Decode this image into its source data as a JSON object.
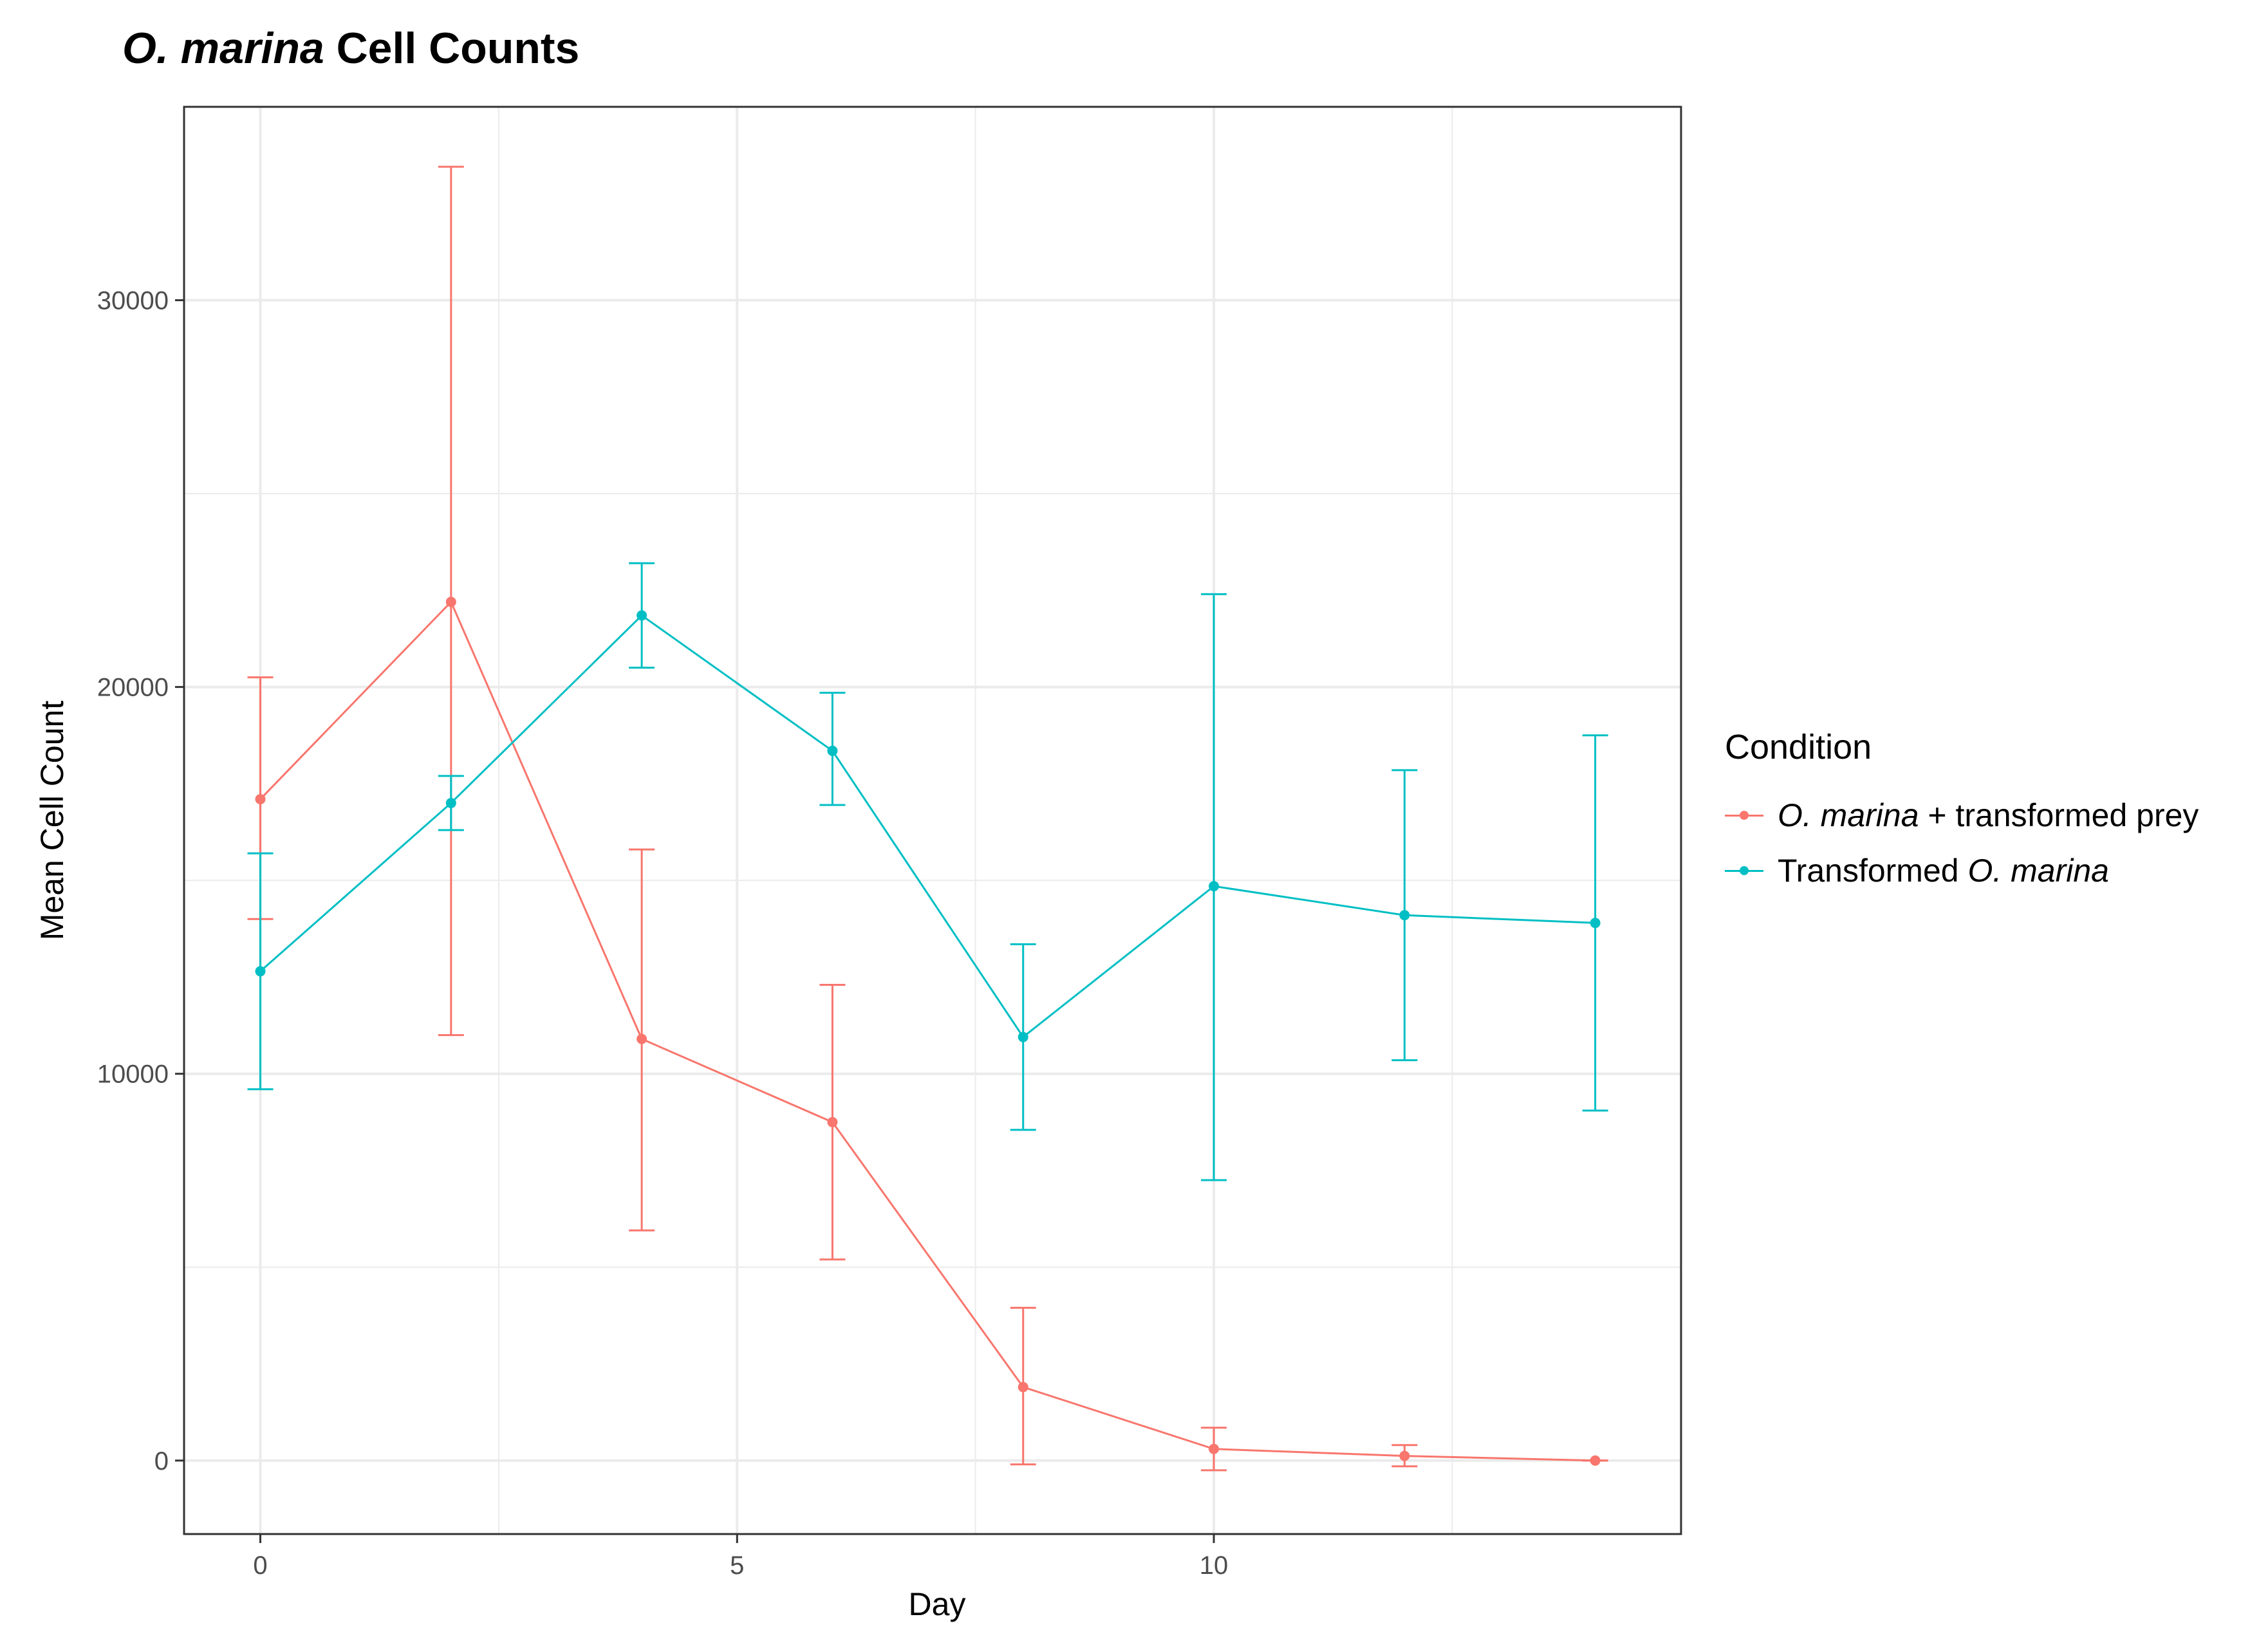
{
  "title": {
    "italic": "O. marina",
    "rest": " Cell Counts"
  },
  "colors": {
    "series_a": "#F8766D",
    "series_b": "#00BFC4",
    "grid": "#EBEBEB",
    "axis": "#333333"
  },
  "chart_data": {
    "type": "line",
    "title": "O. marina Cell Counts",
    "xlabel": "Day",
    "ylabel": "Mean Cell Count",
    "xlim": [
      -0.8,
      14.9
    ],
    "ylim": [
      -1900,
      35000
    ],
    "xticks": [
      0,
      5,
      10
    ],
    "yticks": [
      0,
      10000,
      20000,
      30000
    ],
    "x_minor": [
      2.5,
      7.5,
      12.5
    ],
    "y_minor": [
      5000,
      15000,
      25000
    ],
    "grid": true,
    "legend_title": "Condition",
    "legend_position": "right",
    "series": [
      {
        "name": "O. marina + transformed prey",
        "name_italic": "O. marina",
        "name_rest": " + transformed prey",
        "color": "#F8766D",
        "x": [
          0,
          2,
          4,
          6,
          8,
          10,
          12,
          14
        ],
        "y": [
          17100,
          22200,
          10900,
          8750,
          1900,
          300,
          120,
          0
        ],
        "ymin": [
          14000,
          11000,
          5950,
          5200,
          -100,
          -250,
          -150,
          0
        ],
        "ymax": [
          20250,
          33450,
          15800,
          12300,
          3950,
          850,
          400,
          0
        ]
      },
      {
        "name": "Transformed O. marina",
        "name_plain": "Transformed ",
        "name_italic": "O. marina",
        "color": "#00BFC4",
        "x": [
          0,
          2,
          4,
          6,
          8,
          10,
          12,
          14
        ],
        "y": [
          12650,
          17000,
          21850,
          18350,
          10950,
          14850,
          14100,
          13900
        ],
        "ymin": [
          9600,
          16300,
          20500,
          16950,
          8550,
          7250,
          10350,
          9050
        ],
        "ymax": [
          15700,
          17700,
          23200,
          19850,
          13350,
          22400,
          17850,
          18750
        ]
      }
    ]
  }
}
